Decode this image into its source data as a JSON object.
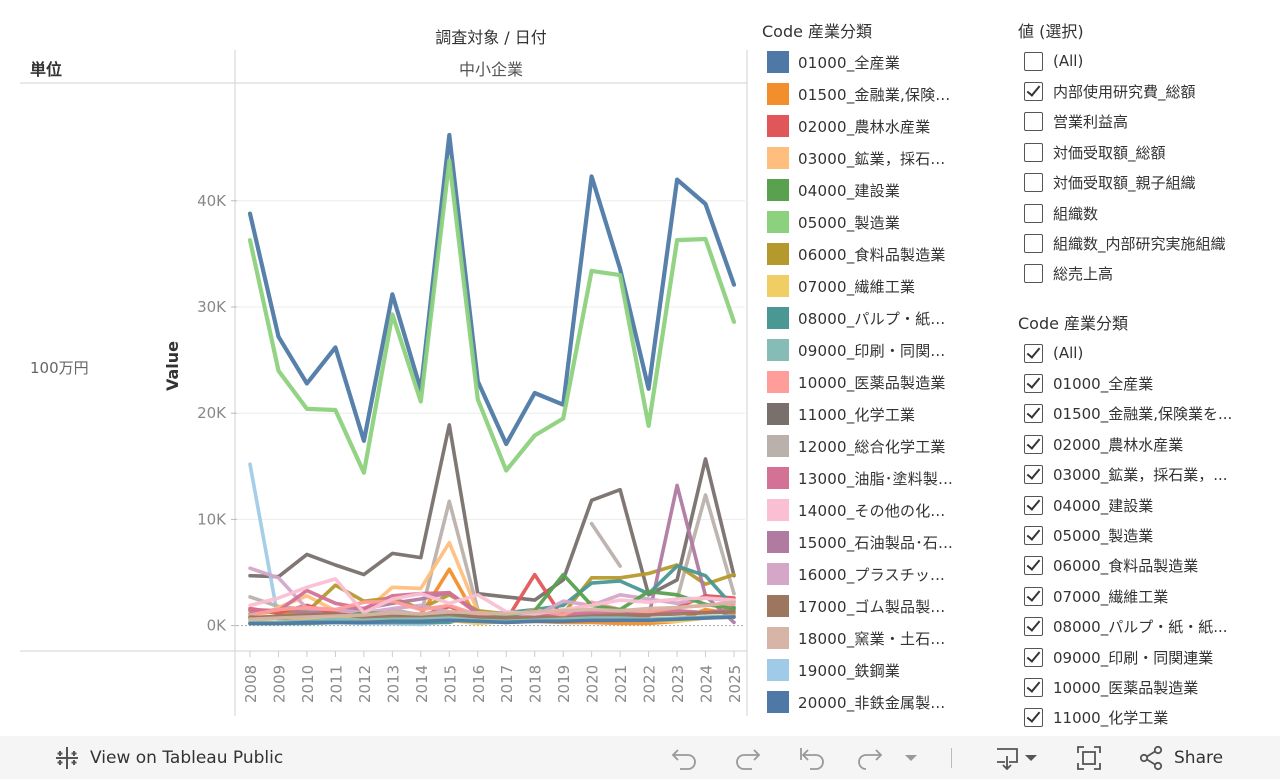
{
  "header": {
    "column_title": "調査対象 / 日付",
    "row_header": "単位",
    "row_value": "100万円",
    "pane_title": "中小企業"
  },
  "chart_data": {
    "type": "line",
    "ylabel": "Value",
    "ylim": [
      -2300,
      51000
    ],
    "yticks": [
      {
        "value": 0,
        "label": "0K"
      },
      {
        "value": 10000,
        "label": "10K"
      },
      {
        "value": 20000,
        "label": "20K"
      },
      {
        "value": 30000,
        "label": "30K"
      },
      {
        "value": 40000,
        "label": "40K"
      }
    ],
    "x": [
      "2008",
      "2009",
      "2010",
      "2011",
      "2012",
      "2013",
      "2014",
      "2015",
      "2016",
      "2017",
      "2018",
      "2019",
      "2020",
      "2021",
      "2022",
      "2023",
      "2024",
      "2025"
    ],
    "series": [
      {
        "name": "01000_全産業",
        "color": "#4e79a7",
        "values": [
          38800,
          27200,
          22800,
          26200,
          17400,
          31200,
          22200,
          46200,
          23000,
          17100,
          21900,
          20800,
          42300,
          33600,
          22300,
          42000,
          39700,
          32100
        ]
      },
      {
        "name": "05000_製造業",
        "color": "#8cd17d",
        "values": [
          36300,
          24000,
          20400,
          20300,
          14400,
          29300,
          21100,
          43800,
          21300,
          14600,
          17900,
          19500,
          33400,
          33000,
          18800,
          36300,
          36400,
          28600
        ]
      },
      {
        "name": "11000_化学工業",
        "color": "#79706e",
        "values": [
          4700,
          4600,
          6700,
          5700,
          4800,
          6800,
          6400,
          18900,
          3000,
          2700,
          2400,
          4300,
          11800,
          12800,
          2900,
          4300,
          15700,
          4700
        ]
      },
      {
        "name": "19000_鉄鋼業",
        "color": "#a0cbe8",
        "values": [
          15200,
          500,
          700,
          300,
          200,
          200,
          100,
          400,
          null,
          null,
          null,
          null,
          null,
          null,
          null,
          null,
          null,
          null
        ]
      },
      {
        "name": "12000_総合化学工業",
        "color": "#bab0ac",
        "values": [
          2700,
          1800,
          1500,
          800,
          400,
          1500,
          1000,
          11700,
          1500,
          null,
          null,
          null,
          9600,
          5600,
          null,
          2500,
          12300,
          3000
        ]
      },
      {
        "name": "03000_鉱業，採石...",
        "color": "#ffbe7d",
        "values": [
          500,
          1700,
          2800,
          1400,
          1300,
          3600,
          3500,
          7800,
          1300,
          null,
          null,
          null,
          null,
          null,
          null,
          null,
          null,
          null
        ]
      },
      {
        "name": "01500_金融業,保険...",
        "color": "#f28e2b",
        "values": [
          700,
          800,
          1000,
          900,
          600,
          700,
          1000,
          5300,
          500,
          300,
          400,
          300,
          300,
          200,
          200,
          400,
          1500,
          1100
        ]
      },
      {
        "name": "06000_食料品製造業",
        "color": "#b6992d",
        "values": [
          1400,
          1200,
          1300,
          3800,
          2300,
          2600,
          1600,
          2900,
          1400,
          1100,
          1200,
          1100,
          4500,
          4500,
          4900,
          5700,
          3900,
          4800
        ]
      },
      {
        "name": "15000_石油製品･石...",
        "color": "#b07aa1",
        "values": [
          1100,
          1500,
          1200,
          1400,
          1600,
          2100,
          2500,
          3100,
          1200,
          600,
          800,
          900,
          1000,
          900,
          800,
          13200,
          2800,
          300
        ]
      },
      {
        "name": "02000_農林水産業",
        "color": "#e15759",
        "values": [
          1600,
          1200,
          1900,
          1100,
          900,
          1100,
          900,
          1800,
          700,
          500,
          4800,
          700,
          500,
          500,
          1100,
          1700,
          2800,
          2600
        ]
      },
      {
        "name": "08000_パルプ・紙...",
        "color": "#499894",
        "values": [
          200,
          200,
          200,
          300,
          300,
          300,
          300,
          300,
          1000,
          1200,
          1500,
          1900,
          4000,
          4200,
          3000,
          5600,
          4700,
          1700
        ]
      },
      {
        "name": "16000_プラスチッ...",
        "color": "#d4a6c8",
        "values": [
          5400,
          4500,
          1600,
          1500,
          1200,
          1600,
          1900,
          1300,
          800,
          700,
          900,
          2300,
          1900,
          2900,
          2500,
          2100,
          2600,
          2300
        ]
      },
      {
        "name": "13000_油脂･塗料製...",
        "color": "#d37295",
        "values": [
          1500,
          1400,
          3300,
          2100,
          1600,
          2800,
          3000,
          3100,
          1100,
          1100,
          1200,
          1000,
          1300,
          1200,
          1100,
          1400,
          1200,
          1500
        ]
      },
      {
        "name": "10000_医薬品製造業",
        "color": "#ff9d9a",
        "values": [
          1000,
          1500,
          1700,
          1500,
          2200,
          2300,
          1500,
          1900,
          1000,
          800,
          1500,
          1000,
          2200,
          1500,
          1300,
          1700,
          1900,
          2000
        ]
      },
      {
        "name": "04000_建設業",
        "color": "#59a14f",
        "values": [
          800,
          700,
          600,
          700,
          1200,
          1100,
          1000,
          1200,
          700,
          900,
          1400,
          4800,
          1900,
          1500,
          3200,
          2900,
          2000,
          1600
        ]
      },
      {
        "name": "07000_繊維工業",
        "color": "#f1ce63",
        "values": [
          400,
          300,
          500,
          800,
          700,
          400,
          600,
          500,
          200,
          400,
          600,
          700,
          600,
          500,
          500,
          400,
          700,
          800
        ]
      },
      {
        "name": "17000_ゴム製品製...",
        "color": "#9d7660",
        "values": [
          700,
          900,
          1000,
          1100,
          800,
          900,
          900,
          1000,
          800,
          700,
          800,
          700,
          900,
          1000,
          1000,
          1100,
          1200,
          1300
        ]
      },
      {
        "name": "14000_その他の化...",
        "color": "#fabfd2",
        "values": [
          1900,
          2600,
          3600,
          4400,
          1200,
          2500,
          3000,
          2100,
          2900,
          1300,
          1100,
          1500,
          1900,
          2400,
          2200,
          2500,
          2600,
          2400
        ]
      },
      {
        "name": "09000_印刷・同関...",
        "color": "#86bcb6",
        "values": [
          300,
          300,
          400,
          600,
          500,
          600,
          600,
          700,
          500,
          400,
          500,
          600,
          700,
          700,
          600,
          700,
          800,
          900
        ]
      },
      {
        "name": "18000_窯業・土石...",
        "color": "#d7b5a6",
        "values": [
          600,
          700,
          800,
          900,
          1000,
          1200,
          1100,
          1300,
          1200,
          1100,
          1300,
          1400,
          1500,
          1400,
          1600,
          1700,
          1900,
          2200
        ]
      },
      {
        "name": "20000_非鉄金属製...",
        "color": "#4e79a7",
        "values": [
          200,
          200,
          300,
          300,
          300,
          400,
          400,
          500,
          400,
          300,
          400,
          400,
          500,
          500,
          500,
          600,
          700,
          800
        ]
      }
    ]
  },
  "legend": {
    "title": "Code 産業分類",
    "items": [
      {
        "label": "01000_全産業",
        "color": "#4e79a7"
      },
      {
        "label": "01500_金融業,保険...",
        "color": "#f28e2b"
      },
      {
        "label": "02000_農林水産業",
        "color": "#e15759"
      },
      {
        "label": "03000_鉱業，採石...",
        "color": "#ffbe7d"
      },
      {
        "label": "04000_建設業",
        "color": "#59a14f"
      },
      {
        "label": "05000_製造業",
        "color": "#8cd17d"
      },
      {
        "label": "06000_食料品製造業",
        "color": "#b6992d"
      },
      {
        "label": "07000_繊維工業",
        "color": "#f1ce63"
      },
      {
        "label": "08000_パルプ・紙...",
        "color": "#499894"
      },
      {
        "label": "09000_印刷・同関...",
        "color": "#86bcb6"
      },
      {
        "label": "10000_医薬品製造業",
        "color": "#ff9d9a"
      },
      {
        "label": "11000_化学工業",
        "color": "#79706e"
      },
      {
        "label": "12000_総合化学工業",
        "color": "#bab0ac"
      },
      {
        "label": "13000_油脂･塗料製...",
        "color": "#d37295"
      },
      {
        "label": "14000_その他の化...",
        "color": "#fabfd2"
      },
      {
        "label": "15000_石油製品･石...",
        "color": "#b07aa1"
      },
      {
        "label": "16000_プラスチッ...",
        "color": "#d4a6c8"
      },
      {
        "label": "17000_ゴム製品製...",
        "color": "#9d7660"
      },
      {
        "label": "18000_窯業・土石...",
        "color": "#d7b5a6"
      },
      {
        "label": "19000_鉄鋼業",
        "color": "#a0cbe8"
      },
      {
        "label": "20000_非鉄金属製...",
        "color": "#4e79a7"
      }
    ]
  },
  "value_filter": {
    "title": "値 (選択)",
    "items": [
      {
        "label": "(All)",
        "checked": false
      },
      {
        "label": "内部使用研究費_総額",
        "checked": true
      },
      {
        "label": "営業利益高",
        "checked": false
      },
      {
        "label": "対価受取額_総額",
        "checked": false
      },
      {
        "label": "対価受取額_親子組織",
        "checked": false
      },
      {
        "label": "組織数",
        "checked": false
      },
      {
        "label": "組織数_内部研究実施組織",
        "checked": false
      },
      {
        "label": "総売上高",
        "checked": false
      }
    ]
  },
  "code_filter": {
    "title": "Code 産業分類",
    "items": [
      {
        "label": "(All)",
        "checked": true
      },
      {
        "label": "01000_全産業",
        "checked": true
      },
      {
        "label": "01500_金融業,保険業を...",
        "checked": true
      },
      {
        "label": "02000_農林水産業",
        "checked": true
      },
      {
        "label": "03000_鉱業，採石業，...",
        "checked": true
      },
      {
        "label": "04000_建設業",
        "checked": true
      },
      {
        "label": "05000_製造業",
        "checked": true
      },
      {
        "label": "06000_食料品製造業",
        "checked": true
      },
      {
        "label": "07000_繊維工業",
        "checked": true
      },
      {
        "label": "08000_パルプ・紙・紙...",
        "checked": true
      },
      {
        "label": "09000_印刷・同関連業",
        "checked": true
      },
      {
        "label": "10000_医薬品製造業",
        "checked": true
      },
      {
        "label": "11000_化学工業",
        "checked": true
      }
    ]
  },
  "toolbar": {
    "view_label": "View on Tableau Public",
    "share_label": "Share",
    "icons": [
      "tableau-logo-icon",
      "undo-icon",
      "redo-icon",
      "revert-icon",
      "refresh-icon",
      "dropdown-icon",
      "download-icon",
      "fullscreen-icon",
      "share-icon"
    ]
  }
}
